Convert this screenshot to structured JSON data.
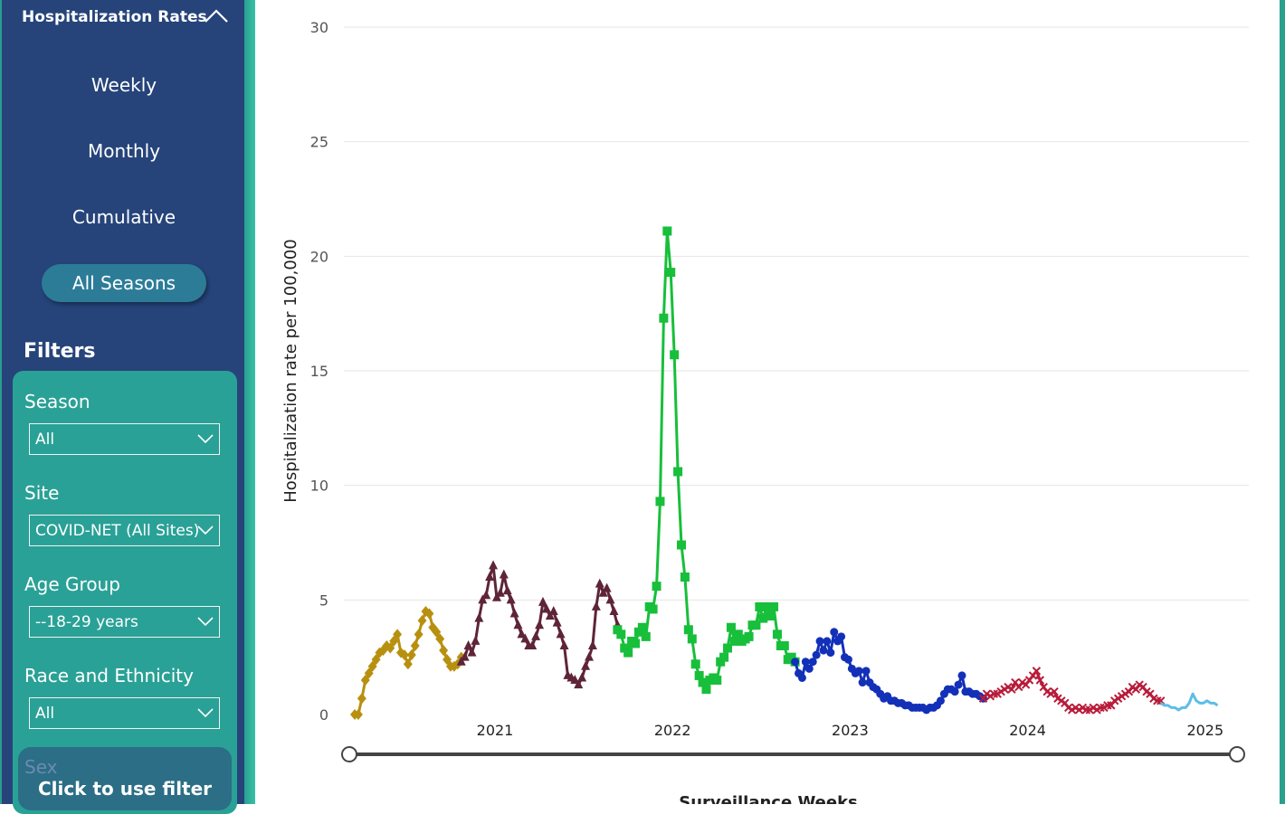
{
  "sidebar": {
    "title": "Hospitalization Rates",
    "nav": [
      "Weekly",
      "Monthly",
      "Cumulative"
    ],
    "all_seasons": "All Seasons",
    "filters_title": "Filters",
    "filters": [
      {
        "label": "Season",
        "value": "All"
      },
      {
        "label": "Site",
        "value": "COVID-NET (All Sites)"
      },
      {
        "label": "Age Group",
        "value": "--18-29 years"
      },
      {
        "label": "Race and Ethnicity",
        "value": "All"
      }
    ],
    "overlay_label": "Sex",
    "overlay_text": "Click to use filter"
  },
  "chart_data": {
    "type": "line",
    "title": "",
    "ylabel": "Hospitalization rate per 100,000",
    "xlabel": "Surveillance Weeks",
    "ylim": [
      0,
      30
    ],
    "yticks": [
      0,
      5,
      10,
      15,
      20,
      25,
      30
    ],
    "xtick_labels": [
      "2021",
      "2022",
      "2023",
      "2024",
      "2025"
    ],
    "x_range": [
      2020.2,
      2025.15
    ],
    "grid": true,
    "series": [
      {
        "color": "#b8900f",
        "marker": "diamond",
        "points": [
          [
            2020.21,
            0
          ],
          [
            2020.23,
            0
          ],
          [
            2020.25,
            0.7
          ],
          [
            2020.27,
            1.5
          ],
          [
            2020.29,
            1.8
          ],
          [
            2020.31,
            2.1
          ],
          [
            2020.33,
            2.4
          ],
          [
            2020.35,
            2.7
          ],
          [
            2020.37,
            2.8
          ],
          [
            2020.39,
            3.0
          ],
          [
            2020.41,
            2.9
          ],
          [
            2020.43,
            3.2
          ],
          [
            2020.45,
            3.5
          ],
          [
            2020.47,
            2.7
          ],
          [
            2020.49,
            2.6
          ],
          [
            2020.51,
            2.2
          ],
          [
            2020.53,
            2.6
          ],
          [
            2020.55,
            3.0
          ],
          [
            2020.57,
            3.5
          ],
          [
            2020.59,
            4.1
          ],
          [
            2020.61,
            4.5
          ],
          [
            2020.63,
            4.4
          ],
          [
            2020.65,
            3.8
          ],
          [
            2020.67,
            3.6
          ],
          [
            2020.69,
            3.3
          ],
          [
            2020.71,
            2.8
          ],
          [
            2020.73,
            2.4
          ],
          [
            2020.75,
            2.1
          ],
          [
            2020.77,
            2.1
          ],
          [
            2020.79,
            2.2
          ],
          [
            2020.81,
            2.5
          ]
        ]
      },
      {
        "color": "#5e2438",
        "marker": "triangle",
        "points": [
          [
            2020.81,
            2.3
          ],
          [
            2020.83,
            2.5
          ],
          [
            2020.85,
            3.0
          ],
          [
            2020.87,
            2.7
          ],
          [
            2020.89,
            3.2
          ],
          [
            2020.91,
            4.2
          ],
          [
            2020.93,
            5.0
          ],
          [
            2020.95,
            5.2
          ],
          [
            2020.97,
            6.0
          ],
          [
            2020.99,
            6.5
          ],
          [
            2021.01,
            5.1
          ],
          [
            2021.03,
            5.3
          ],
          [
            2021.05,
            6.1
          ],
          [
            2021.07,
            5.4
          ],
          [
            2021.09,
            5.0
          ],
          [
            2021.11,
            4.4
          ],
          [
            2021.13,
            3.9
          ],
          [
            2021.15,
            3.5
          ],
          [
            2021.17,
            3.3
          ],
          [
            2021.19,
            3.0
          ],
          [
            2021.21,
            3.0
          ],
          [
            2021.23,
            3.4
          ],
          [
            2021.25,
            3.9
          ],
          [
            2021.27,
            4.9
          ],
          [
            2021.29,
            4.6
          ],
          [
            2021.31,
            4.3
          ],
          [
            2021.33,
            4.5
          ],
          [
            2021.35,
            4.0
          ],
          [
            2021.37,
            3.5
          ],
          [
            2021.39,
            3.0
          ],
          [
            2021.41,
            1.7
          ],
          [
            2021.43,
            1.6
          ],
          [
            2021.45,
            1.5
          ],
          [
            2021.47,
            1.3
          ],
          [
            2021.49,
            1.6
          ],
          [
            2021.51,
            2.1
          ],
          [
            2021.53,
            2.5
          ],
          [
            2021.55,
            3.0
          ],
          [
            2021.57,
            4.7
          ],
          [
            2021.59,
            5.7
          ],
          [
            2021.61,
            5.3
          ],
          [
            2021.63,
            5.5
          ],
          [
            2021.65,
            5.0
          ],
          [
            2021.67,
            4.5
          ],
          [
            2021.69,
            3.9
          ]
        ]
      },
      {
        "color": "#17bf3a",
        "marker": "square",
        "points": [
          [
            2021.69,
            3.7
          ],
          [
            2021.71,
            3.5
          ],
          [
            2021.73,
            2.9
          ],
          [
            2021.75,
            2.7
          ],
          [
            2021.77,
            3.2
          ],
          [
            2021.79,
            3.1
          ],
          [
            2021.81,
            3.6
          ],
          [
            2021.83,
            3.8
          ],
          [
            2021.85,
            3.4
          ],
          [
            2021.87,
            4.7
          ],
          [
            2021.89,
            4.6
          ],
          [
            2021.91,
            5.6
          ],
          [
            2021.93,
            9.3
          ],
          [
            2021.95,
            17.3
          ],
          [
            2021.97,
            21.1
          ],
          [
            2021.99,
            19.3
          ],
          [
            2022.01,
            15.7
          ],
          [
            2022.03,
            10.6
          ],
          [
            2022.05,
            7.4
          ],
          [
            2022.07,
            6.0
          ],
          [
            2022.09,
            3.7
          ],
          [
            2022.11,
            3.3
          ],
          [
            2022.13,
            2.2
          ],
          [
            2022.15,
            1.7
          ],
          [
            2022.17,
            1.4
          ],
          [
            2022.19,
            1.1
          ],
          [
            2022.21,
            1.5
          ],
          [
            2022.23,
            1.6
          ],
          [
            2022.25,
            1.5
          ],
          [
            2022.27,
            2.3
          ],
          [
            2022.29,
            2.5
          ],
          [
            2022.31,
            2.9
          ],
          [
            2022.33,
            3.8
          ],
          [
            2022.35,
            3.2
          ],
          [
            2022.37,
            3.5
          ],
          [
            2022.39,
            3.2
          ],
          [
            2022.41,
            3.3
          ],
          [
            2022.43,
            3.4
          ],
          [
            2022.45,
            3.9
          ],
          [
            2022.47,
            3.9
          ],
          [
            2022.49,
            4.7
          ],
          [
            2022.51,
            4.2
          ],
          [
            2022.53,
            4.7
          ],
          [
            2022.55,
            4.3
          ],
          [
            2022.57,
            4.7
          ],
          [
            2022.59,
            3.5
          ],
          [
            2022.61,
            3.0
          ],
          [
            2022.63,
            3.0
          ],
          [
            2022.65,
            2.4
          ],
          [
            2022.67,
            2.5
          ],
          [
            2022.69,
            2.3
          ]
        ]
      },
      {
        "color": "#1330b8",
        "marker": "circle",
        "points": [
          [
            2022.69,
            2.3
          ],
          [
            2022.71,
            1.8
          ],
          [
            2022.73,
            1.6
          ],
          [
            2022.75,
            2.3
          ],
          [
            2022.77,
            2.0
          ],
          [
            2022.79,
            2.3
          ],
          [
            2022.81,
            2.6
          ],
          [
            2022.83,
            3.2
          ],
          [
            2022.85,
            2.8
          ],
          [
            2022.87,
            3.2
          ],
          [
            2022.89,
            2.7
          ],
          [
            2022.91,
            3.6
          ],
          [
            2022.93,
            3.2
          ],
          [
            2022.95,
            3.4
          ],
          [
            2022.97,
            2.5
          ],
          [
            2022.99,
            2.4
          ],
          [
            2023.01,
            2.0
          ],
          [
            2023.03,
            1.8
          ],
          [
            2023.05,
            1.9
          ],
          [
            2023.07,
            1.4
          ],
          [
            2023.09,
            1.9
          ],
          [
            2023.11,
            1.4
          ],
          [
            2023.13,
            1.2
          ],
          [
            2023.15,
            1.1
          ],
          [
            2023.17,
            0.9
          ],
          [
            2023.19,
            0.7
          ],
          [
            2023.21,
            0.8
          ],
          [
            2023.23,
            0.6
          ],
          [
            2023.25,
            0.6
          ],
          [
            2023.27,
            0.5
          ],
          [
            2023.29,
            0.5
          ],
          [
            2023.31,
            0.4
          ],
          [
            2023.33,
            0.4
          ],
          [
            2023.35,
            0.3
          ],
          [
            2023.37,
            0.3
          ],
          [
            2023.39,
            0.3
          ],
          [
            2023.41,
            0.3
          ],
          [
            2023.43,
            0.2
          ],
          [
            2023.45,
            0.3
          ],
          [
            2023.47,
            0.3
          ],
          [
            2023.49,
            0.4
          ],
          [
            2023.51,
            0.6
          ],
          [
            2023.53,
            0.9
          ],
          [
            2023.55,
            1.1
          ],
          [
            2023.57,
            1.1
          ],
          [
            2023.59,
            1.0
          ],
          [
            2023.61,
            1.3
          ],
          [
            2023.63,
            1.7
          ],
          [
            2023.65,
            1.0
          ],
          [
            2023.67,
            1.0
          ],
          [
            2023.69,
            0.9
          ],
          [
            2023.71,
            0.9
          ],
          [
            2023.73,
            0.8
          ],
          [
            2023.75,
            0.7
          ]
        ]
      },
      {
        "color": "#b81c3a",
        "marker": "x",
        "points": [
          [
            2023.75,
            0.7
          ],
          [
            2023.77,
            0.9
          ],
          [
            2023.79,
            0.8
          ],
          [
            2023.81,
            0.9
          ],
          [
            2023.83,
            0.9
          ],
          [
            2023.85,
            1.0
          ],
          [
            2023.87,
            1.1
          ],
          [
            2023.89,
            1.2
          ],
          [
            2023.91,
            1.1
          ],
          [
            2023.93,
            1.4
          ],
          [
            2023.95,
            1.2
          ],
          [
            2023.97,
            1.4
          ],
          [
            2023.99,
            1.3
          ],
          [
            2024.01,
            1.5
          ],
          [
            2024.03,
            1.7
          ],
          [
            2024.05,
            1.9
          ],
          [
            2024.07,
            1.5
          ],
          [
            2024.09,
            1.2
          ],
          [
            2024.11,
            1.0
          ],
          [
            2024.13,
            0.9
          ],
          [
            2024.15,
            1.0
          ],
          [
            2024.17,
            0.7
          ],
          [
            2024.19,
            0.6
          ],
          [
            2024.21,
            0.5
          ],
          [
            2024.23,
            0.3
          ],
          [
            2024.25,
            0.2
          ],
          [
            2024.27,
            0.3
          ],
          [
            2024.29,
            0.2
          ],
          [
            2024.31,
            0.3
          ],
          [
            2024.33,
            0.2
          ],
          [
            2024.35,
            0.2
          ],
          [
            2024.37,
            0.3
          ],
          [
            2024.39,
            0.2
          ],
          [
            2024.41,
            0.3
          ],
          [
            2024.43,
            0.3
          ],
          [
            2024.45,
            0.4
          ],
          [
            2024.47,
            0.4
          ],
          [
            2024.49,
            0.6
          ],
          [
            2024.51,
            0.7
          ],
          [
            2024.53,
            0.8
          ],
          [
            2024.55,
            0.9
          ],
          [
            2024.57,
            1.0
          ],
          [
            2024.59,
            1.2
          ],
          [
            2024.61,
            1.1
          ],
          [
            2024.63,
            1.3
          ],
          [
            2024.65,
            1.2
          ],
          [
            2024.67,
            1.0
          ],
          [
            2024.69,
            0.9
          ],
          [
            2024.71,
            0.7
          ],
          [
            2024.73,
            0.6
          ],
          [
            2024.75,
            0.6
          ]
        ]
      },
      {
        "color": "#5dbde8",
        "marker": "none",
        "points": [
          [
            2024.75,
            0.5
          ],
          [
            2024.77,
            0.4
          ],
          [
            2024.79,
            0.4
          ],
          [
            2024.81,
            0.3
          ],
          [
            2024.83,
            0.3
          ],
          [
            2024.85,
            0.2
          ],
          [
            2024.87,
            0.3
          ],
          [
            2024.89,
            0.3
          ],
          [
            2024.91,
            0.5
          ],
          [
            2024.93,
            0.9
          ],
          [
            2024.95,
            0.6
          ],
          [
            2024.97,
            0.5
          ],
          [
            2024.99,
            0.5
          ],
          [
            2025.01,
            0.6
          ],
          [
            2025.03,
            0.5
          ],
          [
            2025.05,
            0.5
          ],
          [
            2025.07,
            0.4
          ]
        ]
      }
    ]
  },
  "colors": {
    "sidebar": "#26447a",
    "filter_panel": "#2aa196",
    "accent_edge": "#2aa08f"
  }
}
